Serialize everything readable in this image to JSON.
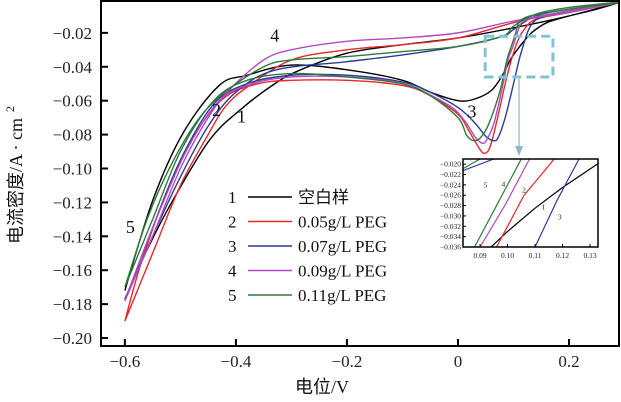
{
  "chart_data": {
    "type": "line",
    "xlabel": "电位/V",
    "ylabel": "电流密度/A · cm",
    "ylabel_sup": "2",
    "xlim": [
      -0.643,
      0.29
    ],
    "ylim": [
      -0.2047,
      -0.0012
    ],
    "x_ticks": [
      {
        "v": -0.6,
        "label": "−0.6"
      },
      {
        "v": -0.4,
        "label": "−0.4"
      },
      {
        "v": -0.2,
        "label": "−0.2"
      },
      {
        "v": 0,
        "label": "0"
      },
      {
        "v": 0.2,
        "label": "0.2"
      }
    ],
    "y_ticks": [
      {
        "v": -0.02,
        "label": "−0.02"
      },
      {
        "v": -0.04,
        "label": "−0.04"
      },
      {
        "v": -0.06,
        "label": "−0.06"
      },
      {
        "v": -0.08,
        "label": "−0.08"
      },
      {
        "v": -0.1,
        "label": "−0.10"
      },
      {
        "v": -0.12,
        "label": "−0.12"
      },
      {
        "v": -0.14,
        "label": "−0.14"
      },
      {
        "v": -0.16,
        "label": "−0.16"
      },
      {
        "v": -0.18,
        "label": "−0.18"
      },
      {
        "v": -0.2,
        "label": "−0.20"
      }
    ],
    "grid": false,
    "legend_position": "center-left",
    "series": [
      {
        "id": "1",
        "name": "空白样",
        "color": "#000000",
        "points": [
          [
            -0.6,
            -0.177
          ],
          [
            -0.56,
            -0.148
          ],
          [
            -0.514,
            -0.119
          ],
          [
            -0.447,
            -0.083
          ],
          [
            -0.387,
            -0.064
          ],
          [
            -0.33,
            -0.05
          ],
          [
            -0.285,
            -0.042
          ],
          [
            -0.2,
            -0.032
          ],
          [
            -0.1,
            -0.027
          ],
          [
            0,
            -0.023
          ],
          [
            0.1,
            -0.017
          ],
          [
            0.2,
            -0.01
          ],
          [
            0.29,
            -0.002
          ],
          [
            0.25,
            -0.006
          ],
          [
            0.2,
            -0.01
          ],
          [
            0.16,
            -0.014
          ],
          [
            0.134,
            -0.0195
          ],
          [
            0.12,
            -0.0245
          ],
          [
            0.11,
            -0.0285
          ],
          [
            0.1,
            -0.033
          ],
          [
            0.094,
            -0.036
          ],
          [
            0.08,
            -0.045
          ],
          [
            0.06,
            -0.054
          ],
          [
            0.03,
            -0.059
          ],
          [
            0,
            -0.06
          ],
          [
            -0.05,
            -0.055
          ],
          [
            -0.1,
            -0.048
          ],
          [
            -0.195,
            -0.042
          ],
          [
            -0.3,
            -0.039
          ],
          [
            -0.38,
            -0.045
          ],
          [
            -0.43,
            -0.051
          ],
          [
            -0.495,
            -0.079
          ],
          [
            -0.55,
            -0.119
          ],
          [
            -0.6,
            -0.172
          ]
        ]
      },
      {
        "id": "2",
        "name": "0.05g/L PEG",
        "color": "#e8282a",
        "points": [
          [
            -0.6,
            -0.19
          ],
          [
            -0.55,
            -0.15
          ],
          [
            -0.5,
            -0.11
          ],
          [
            -0.45,
            -0.08
          ],
          [
            -0.42,
            -0.064
          ],
          [
            -0.38,
            -0.052
          ],
          [
            -0.3,
            -0.036
          ],
          [
            -0.2,
            -0.03
          ],
          [
            -0.1,
            -0.027
          ],
          [
            0,
            -0.023
          ],
          [
            0.1,
            -0.014
          ],
          [
            0.2,
            -0.007
          ],
          [
            0.29,
            -0.002
          ],
          [
            0.2,
            -0.008
          ],
          [
            0.14,
            -0.012
          ],
          [
            0.117,
            -0.019
          ],
          [
            0.106,
            -0.026
          ],
          [
            0.1,
            -0.032
          ],
          [
            0.096,
            -0.036
          ],
          [
            0.085,
            -0.05
          ],
          [
            0.07,
            -0.072
          ],
          [
            0.058,
            -0.087
          ],
          [
            0.049,
            -0.091
          ],
          [
            0.04,
            -0.089
          ],
          [
            0.02,
            -0.078
          ],
          [
            0,
            -0.068
          ],
          [
            -0.05,
            -0.057
          ],
          [
            -0.1,
            -0.051
          ],
          [
            -0.2,
            -0.048
          ],
          [
            -0.3,
            -0.048
          ],
          [
            -0.36,
            -0.05
          ],
          [
            -0.42,
            -0.058
          ],
          [
            -0.47,
            -0.078
          ],
          [
            -0.52,
            -0.11
          ],
          [
            -0.57,
            -0.155
          ],
          [
            -0.6,
            -0.19
          ]
        ]
      },
      {
        "id": "3",
        "name": "0.07g/L PEG",
        "color": "#2c3a9c",
        "points": [
          [
            -0.6,
            -0.178
          ],
          [
            -0.55,
            -0.14
          ],
          [
            -0.5,
            -0.105
          ],
          [
            -0.45,
            -0.075
          ],
          [
            -0.4,
            -0.055
          ],
          [
            -0.33,
            -0.042
          ],
          [
            -0.2,
            -0.037
          ],
          [
            -0.1,
            -0.033
          ],
          [
            0,
            -0.028
          ],
          [
            0.08,
            -0.022
          ],
          [
            0.1,
            -0.018
          ],
          [
            0.14,
            -0.01
          ],
          [
            0.2,
            -0.006
          ],
          [
            0.29,
            -0.002
          ],
          [
            0.2,
            -0.007
          ],
          [
            0.15,
            -0.011
          ],
          [
            0.135,
            -0.014
          ],
          [
            0.126,
            -0.019
          ],
          [
            0.118,
            -0.027
          ],
          [
            0.11,
            -0.036
          ],
          [
            0.1,
            -0.05
          ],
          [
            0.085,
            -0.07
          ],
          [
            0.072,
            -0.082
          ],
          [
            0.063,
            -0.0835
          ],
          [
            0.05,
            -0.081
          ],
          [
            0.03,
            -0.073
          ],
          [
            0,
            -0.064
          ],
          [
            -0.05,
            -0.055
          ],
          [
            -0.1,
            -0.049
          ],
          [
            -0.2,
            -0.045
          ],
          [
            -0.3,
            -0.045
          ],
          [
            -0.38,
            -0.05
          ],
          [
            -0.44,
            -0.062
          ],
          [
            -0.5,
            -0.095
          ],
          [
            -0.55,
            -0.135
          ],
          [
            -0.6,
            -0.178
          ]
        ]
      },
      {
        "id": "4",
        "name": "0.09g/L PEG",
        "color": "#b04ac0",
        "points": [
          [
            -0.6,
            -0.178
          ],
          [
            -0.55,
            -0.14
          ],
          [
            -0.5,
            -0.1
          ],
          [
            -0.45,
            -0.07
          ],
          [
            -0.41,
            -0.053
          ],
          [
            -0.35,
            -0.036
          ],
          [
            -0.3,
            -0.03
          ],
          [
            -0.2,
            -0.025
          ],
          [
            -0.1,
            -0.023
          ],
          [
            0,
            -0.02
          ],
          [
            0.1,
            -0.013
          ],
          [
            0.2,
            -0.007
          ],
          [
            0.29,
            -0.002
          ],
          [
            0.2,
            -0.008
          ],
          [
            0.14,
            -0.011
          ],
          [
            0.115,
            -0.014
          ],
          [
            0.108,
            -0.019
          ],
          [
            0.099,
            -0.028
          ],
          [
            0.09,
            -0.036
          ],
          [
            0.08,
            -0.052
          ],
          [
            0.065,
            -0.073
          ],
          [
            0.052,
            -0.083
          ],
          [
            0.043,
            -0.085
          ],
          [
            0.03,
            -0.081
          ],
          [
            0.01,
            -0.071
          ],
          [
            -0.02,
            -0.062
          ],
          [
            -0.1,
            -0.05
          ],
          [
            -0.2,
            -0.046
          ],
          [
            -0.3,
            -0.046
          ],
          [
            -0.37,
            -0.05
          ],
          [
            -0.43,
            -0.06
          ],
          [
            -0.49,
            -0.09
          ],
          [
            -0.55,
            -0.135
          ],
          [
            -0.6,
            -0.178
          ]
        ]
      },
      {
        "id": "5",
        "name": "0.11g/L PEG",
        "color": "#2f7a3a",
        "points": [
          [
            -0.6,
            -0.17
          ],
          [
            -0.56,
            -0.13
          ],
          [
            -0.52,
            -0.1
          ],
          [
            -0.47,
            -0.072
          ],
          [
            -0.42,
            -0.055
          ],
          [
            -0.35,
            -0.04
          ],
          [
            -0.3,
            -0.036
          ],
          [
            -0.2,
            -0.034
          ],
          [
            -0.1,
            -0.031
          ],
          [
            0,
            -0.028
          ],
          [
            0.08,
            -0.022
          ],
          [
            0.1,
            -0.016
          ],
          [
            0.14,
            -0.009
          ],
          [
            0.2,
            -0.005
          ],
          [
            0.29,
            -0.002
          ],
          [
            0.2,
            -0.006
          ],
          [
            0.13,
            -0.01
          ],
          [
            0.11,
            -0.014
          ],
          [
            0.104,
            -0.02
          ],
          [
            0.096,
            -0.028
          ],
          [
            0.088,
            -0.036
          ],
          [
            0.075,
            -0.055
          ],
          [
            0.055,
            -0.074
          ],
          [
            0.04,
            -0.082
          ],
          [
            0.027,
            -0.0835
          ],
          [
            0.015,
            -0.08
          ],
          [
            0,
            -0.07
          ],
          [
            -0.05,
            -0.057
          ],
          [
            -0.1,
            -0.05
          ],
          [
            -0.2,
            -0.046
          ],
          [
            -0.3,
            -0.044
          ],
          [
            -0.38,
            -0.048
          ],
          [
            -0.44,
            -0.06
          ],
          [
            -0.5,
            -0.09
          ],
          [
            -0.55,
            -0.13
          ],
          [
            -0.6,
            -0.17
          ]
        ]
      }
    ],
    "curve_labels": [
      {
        "text": "1",
        "at": [
          -0.39,
          -0.073
        ]
      },
      {
        "text": "2",
        "at": [
          -0.435,
          -0.069
        ]
      },
      {
        "text": "3",
        "at": [
          0.025,
          -0.07
        ]
      },
      {
        "text": "4",
        "at": [
          -0.33,
          -0.025
        ]
      },
      {
        "text": "5",
        "at": [
          -0.59,
          -0.138
        ]
      }
    ],
    "zoom_region": {
      "xlim": [
        0.049,
        0.171
      ],
      "ylim": [
        -0.046,
        -0.022
      ],
      "color": "#7fc4d4"
    },
    "inset": {
      "xlim": [
        0.0838,
        0.1329
      ],
      "ylim": [
        -0.036,
        -0.019
      ],
      "x_ticks": [
        {
          "v": 0.09,
          "label": "0.09"
        },
        {
          "v": 0.1,
          "label": "0.10"
        },
        {
          "v": 0.11,
          "label": "0.11"
        },
        {
          "v": 0.12,
          "label": "0.12"
        },
        {
          "v": 0.13,
          "label": "0.13"
        }
      ],
      "y_ticks": [
        {
          "v": -0.02,
          "label": "−0.020"
        },
        {
          "v": -0.022,
          "label": "−0.022"
        },
        {
          "v": -0.024,
          "label": "−0.024"
        },
        {
          "v": -0.026,
          "label": "−0.026"
        },
        {
          "v": -0.028,
          "label": "−0.028"
        },
        {
          "v": -0.03,
          "label": "−0.030"
        },
        {
          "v": -0.032,
          "label": "−0.032"
        },
        {
          "v": -0.034,
          "label": "−0.034"
        },
        {
          "v": -0.036,
          "label": "−0.036"
        }
      ],
      "labels": [
        {
          "text": "5",
          "at": [
            0.092,
            -0.0245
          ]
        },
        {
          "text": "4",
          "at": [
            0.0985,
            -0.0243
          ]
        },
        {
          "text": "2",
          "at": [
            0.106,
            -0.0255
          ]
        },
        {
          "text": "1",
          "at": [
            0.113,
            -0.0288
          ]
        },
        {
          "text": "3",
          "at": [
            0.119,
            -0.0307
          ]
        }
      ]
    }
  }
}
